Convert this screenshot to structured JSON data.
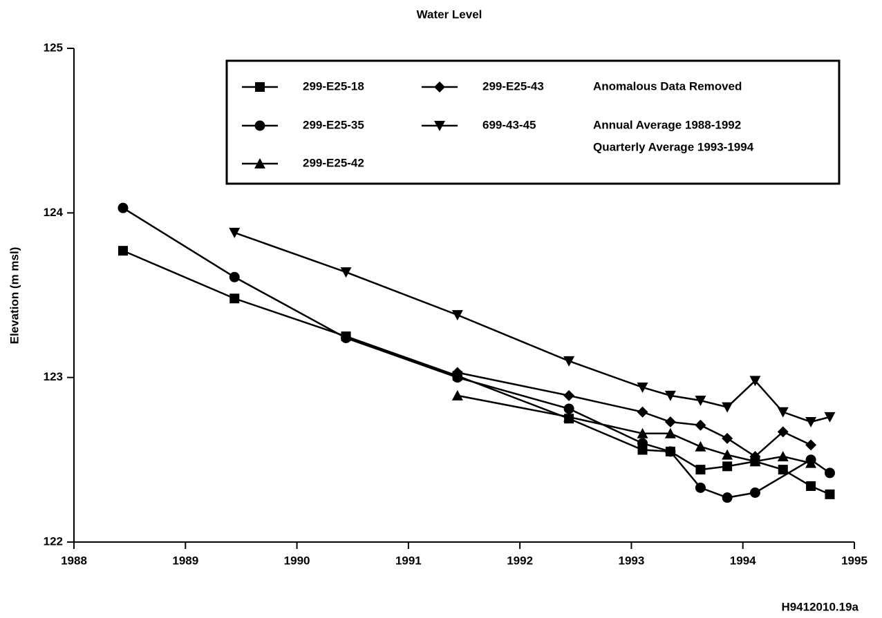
{
  "chart_data": {
    "type": "line",
    "title": "Water Level",
    "y_label": "Elevation (m msl)",
    "notes": [
      "Anomalous Data Removed",
      "Annual Average 1988-1992",
      "Quarterly Average 1993-1994"
    ],
    "footer": "H9412010.19a",
    "xlim": [
      1988,
      1995
    ],
    "xticks": [
      1988,
      1989,
      1990,
      1991,
      1992,
      1993,
      1994,
      1995
    ],
    "ylim": [
      122,
      125
    ],
    "yticks": [
      122,
      123,
      124,
      125
    ],
    "series": [
      {
        "name": "299-E25-18",
        "color": "#000000",
        "marker": "square",
        "x": [
          1988.44,
          1989.44,
          1990.44,
          1991.44,
          1992.44,
          1993.1,
          1993.35,
          1993.62,
          1993.86,
          1994.11,
          1994.36,
          1994.61,
          1994.78
        ],
        "values": [
          123.77,
          123.48,
          123.25,
          123.01,
          122.75,
          122.56,
          122.55,
          122.44,
          122.46,
          122.49,
          122.44,
          122.34,
          122.29
        ]
      },
      {
        "name": "299-E25-35",
        "color": "#000000",
        "marker": "circle",
        "x": [
          1988.44,
          1989.44,
          1990.44,
          1991.44,
          1992.44,
          1993.1,
          1993.35,
          1993.62,
          1993.86,
          1994.11,
          1994.61,
          1994.78
        ],
        "values": [
          124.03,
          123.61,
          123.24,
          123.0,
          122.81,
          122.6,
          122.55,
          122.33,
          122.27,
          122.3,
          122.5,
          122.42
        ]
      },
      {
        "name": "299-E25-42",
        "color": "#000000",
        "marker": "triangle",
        "x": [
          1991.44,
          1992.44,
          1993.1,
          1993.35,
          1993.62,
          1993.86,
          1994.11,
          1994.36,
          1994.61
        ],
        "values": [
          122.89,
          122.76,
          122.66,
          122.66,
          122.58,
          122.53,
          122.49,
          122.52,
          122.48
        ]
      },
      {
        "name": "299-E25-43",
        "color": "#000000",
        "marker": "diamond",
        "x": [
          1991.44,
          1992.44,
          1993.1,
          1993.35,
          1993.62,
          1993.86,
          1994.11,
          1994.36,
          1994.61
        ],
        "values": [
          123.03,
          122.89,
          122.79,
          122.73,
          122.71,
          122.63,
          122.52,
          122.67,
          122.59
        ]
      },
      {
        "name": "699-43-45",
        "color": "#000000",
        "marker": "triangle-down",
        "x": [
          1989.44,
          1990.44,
          1991.44,
          1992.44,
          1993.1,
          1993.35,
          1993.62,
          1993.86,
          1994.11,
          1994.36,
          1994.61,
          1994.78
        ],
        "values": [
          123.88,
          123.64,
          123.38,
          123.1,
          122.94,
          122.89,
          122.86,
          122.82,
          122.98,
          122.79,
          122.73,
          122.76
        ]
      }
    ]
  }
}
